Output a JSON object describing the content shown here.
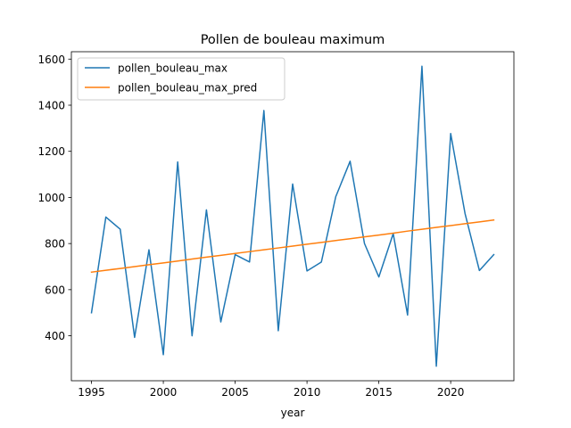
{
  "chart_data": {
    "type": "line",
    "title": "Pollen de bouleau maximum",
    "xlabel": "year",
    "ylabel": "",
    "xlim": [
      1993.6,
      2024.4
    ],
    "ylim": [
      205,
      1632
    ],
    "xticks": [
      1995,
      2000,
      2005,
      2010,
      2015,
      2020
    ],
    "yticks": [
      400,
      600,
      800,
      1000,
      1200,
      1400,
      1600
    ],
    "grid": false,
    "legend_position": "top-left",
    "x": [
      1995,
      1996,
      1997,
      1998,
      1999,
      2000,
      2001,
      2002,
      2003,
      2004,
      2005,
      2006,
      2007,
      2008,
      2009,
      2010,
      2011,
      2012,
      2013,
      2014,
      2015,
      2016,
      2017,
      2018,
      2019,
      2020,
      2021,
      2022,
      2023
    ],
    "series": [
      {
        "name": "pollen_bouleau_max",
        "color": "#1f77b4",
        "values": [
          500,
          915,
          862,
          393,
          773,
          318,
          1154,
          400,
          946,
          460,
          752,
          720,
          1377,
          422,
          1058,
          681,
          720,
          1003,
          1157,
          800,
          655,
          843,
          490,
          1569,
          268,
          1277,
          930,
          683,
          752
        ]
      },
      {
        "name": "pollen_bouleau_max_pred",
        "color": "#ff7f0e",
        "values": [
          676,
          684,
          692,
          700,
          708,
          716,
          724,
          733,
          741,
          749,
          757,
          765,
          773,
          781,
          789,
          797,
          805,
          813,
          821,
          829,
          837,
          845,
          854,
          862,
          870,
          878,
          886,
          894,
          902
        ]
      }
    ]
  }
}
